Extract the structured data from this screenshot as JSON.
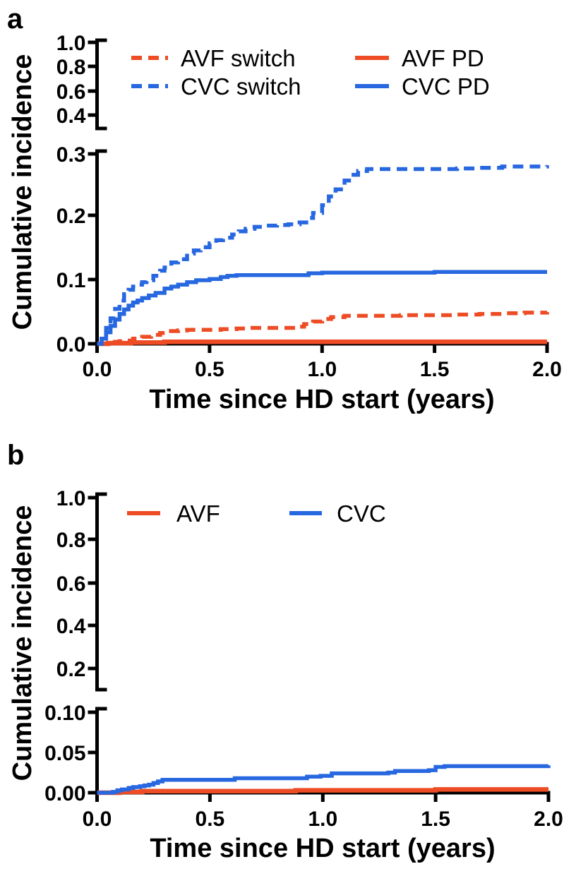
{
  "colors": {
    "red": "#ED4C24",
    "blue": "#2767E0",
    "axis": "#000000",
    "background": "#FFFFFF"
  },
  "panels": [
    {
      "panel_label": "a",
      "y_axis_title": "Cumulative incidence",
      "x_axis_title": "Time since HD start (years)",
      "upper_y_tick_labels": [
        "1.0",
        "0.8",
        "0.6",
        "0.4"
      ],
      "main_y_tick_labels": [
        "0.3",
        "0.2",
        "0.1",
        "0.0"
      ],
      "x_tick_labels": [
        "0.0",
        "0.5",
        "1.0",
        "1.5",
        "2.0"
      ],
      "legend": [
        {
          "label": "AVF switch",
          "color_key": "red",
          "dashed": true
        },
        {
          "label": "CVC switch",
          "color_key": "blue",
          "dashed": true
        },
        {
          "label": "AVF PD",
          "color_key": "red",
          "dashed": false
        },
        {
          "label": "CVC PD",
          "color_key": "blue",
          "dashed": false
        }
      ]
    },
    {
      "panel_label": "b",
      "y_axis_title": "Cumulative incidence",
      "x_axis_title": "Time since HD start (years)",
      "upper_y_tick_labels": [
        "1.0",
        "0.8",
        "0.6",
        "0.4",
        "0.2"
      ],
      "main_y_tick_labels": [
        "0.10",
        "0.05",
        "0.00"
      ],
      "x_tick_labels": [
        "0.0",
        "0.5",
        "1.0",
        "1.5",
        "2.0"
      ],
      "legend": [
        {
          "label": "AVF",
          "color_key": "red",
          "dashed": false
        },
        {
          "label": "CVC",
          "color_key": "blue",
          "dashed": false
        }
      ]
    }
  ],
  "chart_data": [
    {
      "type": "line",
      "title": "",
      "xlabel": "Time since HD start (years)",
      "ylabel": "Cumulative incidence",
      "xlim": [
        0,
        2
      ],
      "broken_y_axis": true,
      "ylim_main_segment": [
        0,
        0.3
      ],
      "ylim_upper_segment": [
        0.4,
        1.0
      ],
      "x_ticks": [
        0.0,
        0.5,
        1.0,
        1.5,
        2.0
      ],
      "y_ticks_main": [
        0.0,
        0.1,
        0.2,
        0.3
      ],
      "y_ticks_upper": [
        0.4,
        0.6,
        0.8,
        1.0
      ],
      "legend_position": "top-inside",
      "grid": false,
      "series": [
        {
          "name": "AVF switch",
          "color_key": "red",
          "line_style": "dashed",
          "points": [
            [
              0,
              0
            ],
            [
              0.05,
              0.002
            ],
            [
              0.08,
              0.003
            ],
            [
              0.1,
              0.004
            ],
            [
              0.13,
              0.005
            ],
            [
              0.16,
              0.008
            ],
            [
              0.2,
              0.011
            ],
            [
              0.24,
              0.014
            ],
            [
              0.28,
              0.017
            ],
            [
              0.32,
              0.02
            ],
            [
              0.36,
              0.021
            ],
            [
              0.4,
              0.022
            ],
            [
              0.5,
              0.022
            ],
            [
              0.55,
              0.023
            ],
            [
              0.62,
              0.024
            ],
            [
              0.68,
              0.025
            ],
            [
              0.8,
              0.025
            ],
            [
              0.88,
              0.027
            ],
            [
              0.92,
              0.031
            ],
            [
              0.96,
              0.035
            ],
            [
              1.0,
              0.039
            ],
            [
              1.04,
              0.042
            ],
            [
              1.1,
              0.044
            ],
            [
              1.2,
              0.044
            ],
            [
              1.35,
              0.045
            ],
            [
              1.5,
              0.045
            ],
            [
              1.6,
              0.046
            ],
            [
              1.7,
              0.047
            ],
            [
              1.8,
              0.048
            ],
            [
              1.9,
              0.049
            ],
            [
              2.0,
              0.05
            ]
          ]
        },
        {
          "name": "CVC switch",
          "color_key": "blue",
          "line_style": "dashed",
          "points": [
            [
              0,
              0
            ],
            [
              0.02,
              0.012
            ],
            [
              0.04,
              0.025
            ],
            [
              0.06,
              0.04
            ],
            [
              0.08,
              0.055
            ],
            [
              0.1,
              0.068
            ],
            [
              0.12,
              0.078
            ],
            [
              0.14,
              0.085
            ],
            [
              0.16,
              0.09
            ],
            [
              0.18,
              0.093
            ],
            [
              0.2,
              0.097
            ],
            [
              0.22,
              0.1
            ],
            [
              0.25,
              0.107
            ],
            [
              0.28,
              0.115
            ],
            [
              0.3,
              0.12
            ],
            [
              0.33,
              0.128
            ],
            [
              0.36,
              0.133
            ],
            [
              0.4,
              0.142
            ],
            [
              0.43,
              0.147
            ],
            [
              0.46,
              0.152
            ],
            [
              0.5,
              0.158
            ],
            [
              0.53,
              0.163
            ],
            [
              0.56,
              0.167
            ],
            [
              0.6,
              0.172
            ],
            [
              0.63,
              0.177
            ],
            [
              0.66,
              0.181
            ],
            [
              0.7,
              0.184
            ],
            [
              0.75,
              0.186
            ],
            [
              0.8,
              0.187
            ],
            [
              0.85,
              0.188
            ],
            [
              0.9,
              0.191
            ],
            [
              0.93,
              0.198
            ],
            [
              0.96,
              0.206
            ],
            [
              1.0,
              0.218
            ],
            [
              1.03,
              0.232
            ],
            [
              1.06,
              0.243
            ],
            [
              1.1,
              0.257
            ],
            [
              1.13,
              0.266
            ],
            [
              1.16,
              0.272
            ],
            [
              1.2,
              0.275
            ],
            [
              1.4,
              0.275
            ],
            [
              1.5,
              0.275
            ],
            [
              1.6,
              0.276
            ],
            [
              1.7,
              0.277
            ],
            [
              1.8,
              0.279
            ],
            [
              1.9,
              0.279
            ],
            [
              2.0,
              0.281
            ]
          ]
        },
        {
          "name": "AVF PD",
          "color_key": "red",
          "line_style": "solid",
          "points": [
            [
              0,
              0
            ],
            [
              0.05,
              0.001
            ],
            [
              0.15,
              0.002
            ],
            [
              0.3,
              0.003
            ],
            [
              1.0,
              0.003
            ],
            [
              2.0,
              0.003
            ]
          ]
        },
        {
          "name": "CVC PD",
          "color_key": "blue",
          "line_style": "solid",
          "points": [
            [
              0,
              0
            ],
            [
              0.02,
              0.008
            ],
            [
              0.04,
              0.018
            ],
            [
              0.06,
              0.028
            ],
            [
              0.08,
              0.038
            ],
            [
              0.1,
              0.047
            ],
            [
              0.12,
              0.054
            ],
            [
              0.14,
              0.06
            ],
            [
              0.16,
              0.065
            ],
            [
              0.18,
              0.068
            ],
            [
              0.2,
              0.072
            ],
            [
              0.23,
              0.076
            ],
            [
              0.26,
              0.08
            ],
            [
              0.3,
              0.087
            ],
            [
              0.33,
              0.09
            ],
            [
              0.36,
              0.093
            ],
            [
              0.4,
              0.097
            ],
            [
              0.44,
              0.1
            ],
            [
              0.5,
              0.102
            ],
            [
              0.55,
              0.105
            ],
            [
              0.58,
              0.107
            ],
            [
              0.62,
              0.108
            ],
            [
              0.8,
              0.108
            ],
            [
              0.9,
              0.108
            ],
            [
              0.94,
              0.111
            ],
            [
              1.0,
              0.112
            ],
            [
              1.2,
              0.112
            ],
            [
              1.5,
              0.113
            ],
            [
              2.0,
              0.113
            ]
          ]
        }
      ]
    },
    {
      "type": "line",
      "title": "",
      "xlabel": "Time since HD start (years)",
      "ylabel": "Cumulative incidence",
      "xlim": [
        0,
        2
      ],
      "broken_y_axis": true,
      "ylim_main_segment": [
        0,
        0.1
      ],
      "ylim_upper_segment": [
        0.2,
        1.0
      ],
      "x_ticks": [
        0.0,
        0.5,
        1.0,
        1.5,
        2.0
      ],
      "y_ticks_main": [
        0.0,
        0.05,
        0.1
      ],
      "y_ticks_upper": [
        0.2,
        0.4,
        0.6,
        0.8,
        1.0
      ],
      "legend_position": "top-inside",
      "grid": false,
      "series": [
        {
          "name": "AVF",
          "color_key": "red",
          "line_style": "solid",
          "points": [
            [
              0,
              0
            ],
            [
              0.1,
              0.001
            ],
            [
              0.2,
              0.002
            ],
            [
              0.85,
              0.002
            ],
            [
              0.88,
              0.003
            ],
            [
              1.0,
              0.003
            ],
            [
              1.5,
              0.004
            ],
            [
              2.0,
              0.004
            ]
          ]
        },
        {
          "name": "CVC",
          "color_key": "blue",
          "line_style": "solid",
          "points": [
            [
              0,
              0
            ],
            [
              0.07,
              0.001
            ],
            [
              0.09,
              0.003
            ],
            [
              0.11,
              0.004
            ],
            [
              0.14,
              0.006
            ],
            [
              0.16,
              0.007
            ],
            [
              0.19,
              0.008
            ],
            [
              0.21,
              0.009
            ],
            [
              0.23,
              0.01
            ],
            [
              0.25,
              0.012
            ],
            [
              0.27,
              0.014
            ],
            [
              0.29,
              0.016
            ],
            [
              0.45,
              0.016
            ],
            [
              0.58,
              0.016
            ],
            [
              0.61,
              0.018
            ],
            [
              0.88,
              0.018
            ],
            [
              0.93,
              0.02
            ],
            [
              0.99,
              0.021
            ],
            [
              1.04,
              0.024
            ],
            [
              1.29,
              0.025
            ],
            [
              1.32,
              0.027
            ],
            [
              1.47,
              0.028
            ],
            [
              1.5,
              0.032
            ],
            [
              1.54,
              0.033
            ],
            [
              2.0,
              0.034
            ]
          ]
        }
      ]
    }
  ]
}
